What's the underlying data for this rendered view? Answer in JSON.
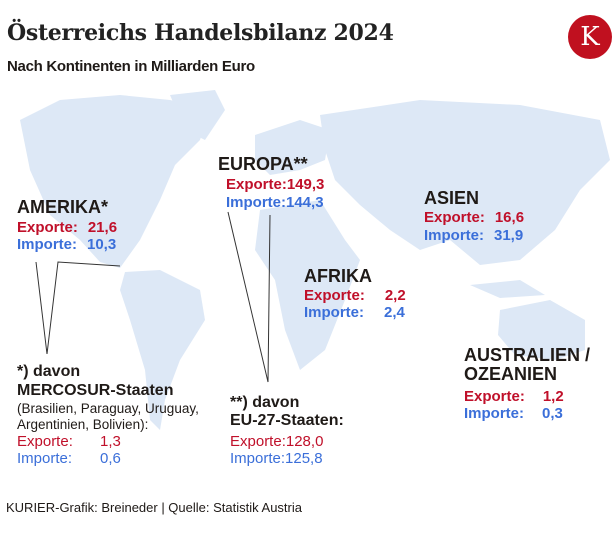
{
  "title": "Österreichs Handelsbilanz 2024",
  "subtitle": "Nach Kontinenten in Milliarden Euro",
  "logo": "K",
  "colors": {
    "exports": "#c0102a",
    "imports": "#3b6fd9",
    "land": "#dde8f6",
    "logo": "#c0101f"
  },
  "regions": {
    "amerika": {
      "name": "AMERIKA*",
      "export_label": "Exporte:",
      "export": "21,6",
      "import_label": "Importe:",
      "import": "10,3"
    },
    "europa": {
      "name": "EUROPA**",
      "export_label": "Exporte:",
      "export": "149,3",
      "import_label": "Importe:",
      "import": "144,3"
    },
    "asien": {
      "name": "ASIEN",
      "export_label": "Exporte:",
      "export": "16,6",
      "import_label": "Importe:",
      "import": "31,9"
    },
    "afrika": {
      "name": "AFRIKA",
      "export_label": "Exporte:",
      "export": "2,2",
      "import_label": "Importe:",
      "import": "2,4"
    },
    "australien": {
      "name1": "AUSTRALIEN /",
      "name2": "OZEANIEN",
      "export_label": "Exporte:",
      "export": "1,2",
      "import_label": "Importe:",
      "import": "0,3"
    }
  },
  "footnotes": {
    "mercosur": {
      "line1": "*) davon",
      "line2": "MERCOSUR-Staaten",
      "line3": "(Brasilien, Paraguay, Uruguay,",
      "line4": "Argentinien, Bolivien):",
      "export_label": "Exporte:",
      "export": "1,3",
      "import_label": "Importe:",
      "import": "0,6"
    },
    "eu27": {
      "line1": "**) davon",
      "line2": "EU-27-Staaten:",
      "export_label": "Exporte:",
      "export": "128,0",
      "import_label": "Importe:",
      "import": "125,8"
    }
  },
  "footer": "KURIER-Grafik: Breineder | Quelle: Statistik Austria"
}
